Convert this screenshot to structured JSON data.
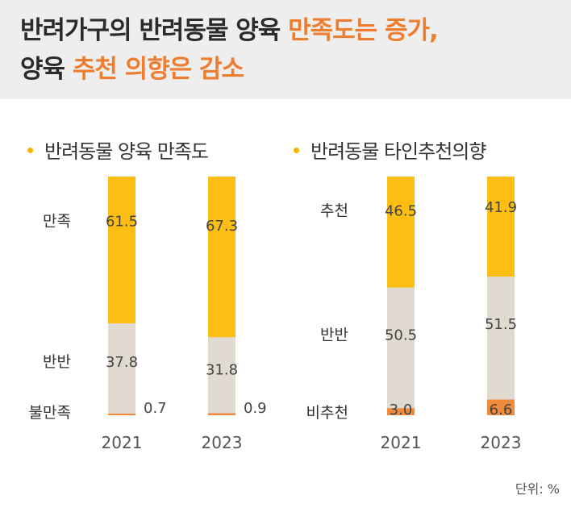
{
  "title": {
    "line1_prefix": "반려가구의 반려동물 양육 ",
    "line1_highlight": "만족도는 증가,",
    "line2_prefix": "양육 ",
    "line2_highlight": "추천 의향은 감소"
  },
  "unit_label": "단위: %",
  "colors": {
    "top": "#fdbe14",
    "middle": "#e0dad1",
    "bottom": "#f08a3c",
    "highlight": "#ee7d2f",
    "dot": "#f4b400"
  },
  "chart_data": [
    {
      "type": "bar",
      "stacked": true,
      "title": "반려동물 양육 만족도",
      "categories": [
        "2021",
        "2023"
      ],
      "series": [
        {
          "name": "만족",
          "values": [
            61.5,
            67.3
          ]
        },
        {
          "name": "반반",
          "values": [
            37.8,
            31.8
          ]
        },
        {
          "name": "불만족",
          "values": [
            0.7,
            0.9
          ]
        }
      ],
      "ylim": [
        0,
        100
      ]
    },
    {
      "type": "bar",
      "stacked": true,
      "title": "반려동물 타인추천의향",
      "categories": [
        "2021",
        "2023"
      ],
      "series": [
        {
          "name": "추천",
          "values": [
            46.5,
            41.9
          ]
        },
        {
          "name": "반반",
          "values": [
            50.5,
            51.5
          ]
        },
        {
          "name": "비추천",
          "values": [
            3.0,
            6.6
          ]
        }
      ],
      "ylim": [
        0,
        100
      ]
    }
  ]
}
